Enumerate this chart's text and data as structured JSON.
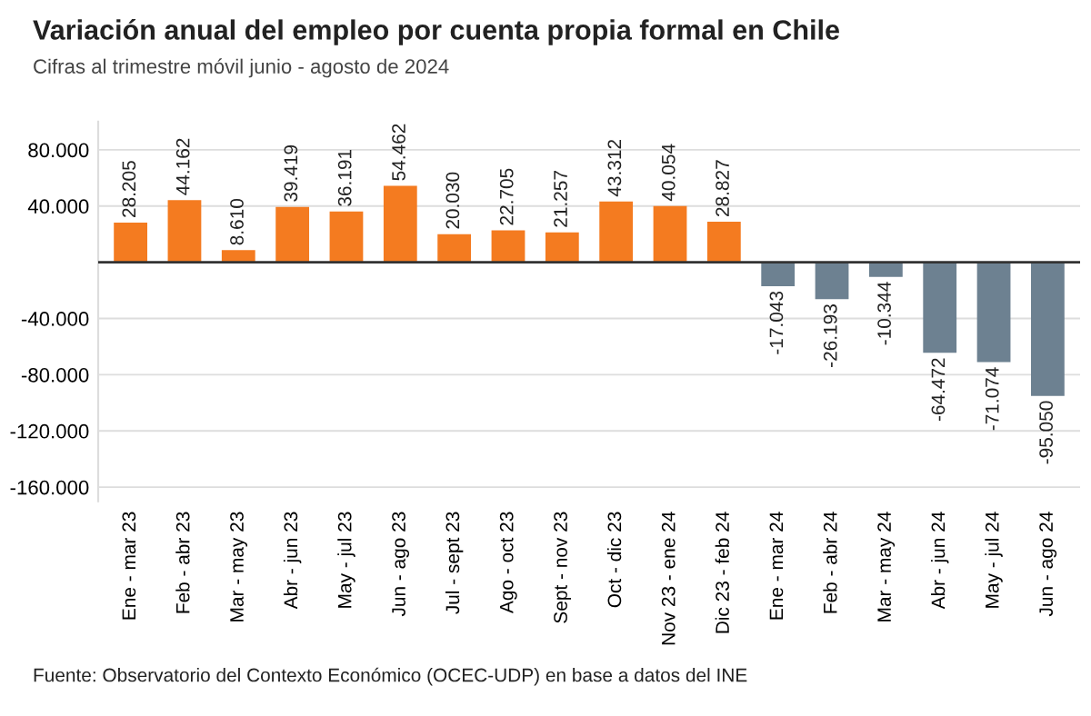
{
  "chart_data": {
    "type": "bar",
    "title": "Variación anual del empleo por cuenta propia formal en Chile",
    "subtitle": "Cifras al trimestre móvil junio - agosto de 2024",
    "annotations": [
      "Fuente: Observatorio del Contexto Económico (OCEC-UDP) en base a datos del INE"
    ],
    "categories": [
      "Ene - mar 23",
      "Feb - abr 23",
      "Mar - may 23",
      "Abr - jun 23",
      "May - jul 23",
      "Jun - ago 23",
      "Jul - sept 23",
      "Ago - oct 23",
      "Sept - nov 23",
      "Oct - dic 23",
      "Nov 23 - ene 24",
      "Dic 23 - feb 24",
      "Ene - mar 24",
      "Feb - abr 24",
      "Mar - may 24",
      "Abr - jun 24",
      "May - jul 24",
      "Jun - ago 24"
    ],
    "values": [
      28205,
      44162,
      8610,
      39419,
      36191,
      54462,
      20030,
      22705,
      21257,
      43312,
      40054,
      28827,
      -17043,
      -26193,
      -10344,
      -64472,
      -71074,
      -95050
    ],
    "value_labels": [
      "28.205",
      "44.162",
      "8.610",
      "39.419",
      "36.191",
      "54.462",
      "20.030",
      "22.705",
      "21.257",
      "43.312",
      "40.054",
      "28.827",
      "-17.043",
      "-26.193",
      "-10.344",
      "-64.472",
      "-71.074",
      "-95.050"
    ],
    "colors": [
      "#f47b20",
      "#f47b20",
      "#f47b20",
      "#f47b20",
      "#f47b20",
      "#f47b20",
      "#f47b20",
      "#f47b20",
      "#f47b20",
      "#f47b20",
      "#f47b20",
      "#f47b20",
      "#6d8191",
      "#6d8191",
      "#6d8191",
      "#6d8191",
      "#6d8191",
      "#6d8191"
    ],
    "ylim": [
      -170000,
      100000
    ],
    "yticks": [
      {
        "value": 80000,
        "label": "80.000"
      },
      {
        "value": 40000,
        "label": "40.000"
      },
      {
        "value": 0,
        "label": null
      },
      {
        "value": -40000,
        "label": "-40.000"
      },
      {
        "value": -80000,
        "label": "-80.000"
      },
      {
        "value": -120000,
        "label": "-120.000"
      },
      {
        "value": -160000,
        "label": "-160.000"
      }
    ],
    "ref_lines": [
      {
        "axis": "y",
        "value": 0,
        "color": "#333333"
      }
    ],
    "grid": "y"
  }
}
